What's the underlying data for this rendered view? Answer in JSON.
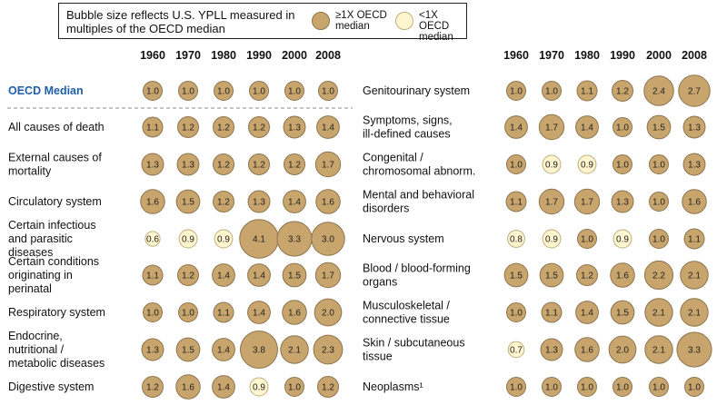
{
  "legend": {
    "title": "Bubble size reflects U.S. YPLL measured in multiples of the OECD median",
    "above_label": "≥1X OECD median",
    "below_label": "<1X OECD median"
  },
  "colors": {
    "above": "#c8a56c",
    "below": "#fff6cf",
    "median_label": "#1f5fa8",
    "stroke": "#8c7550"
  },
  "chart_data": {
    "type": "bubble-table",
    "years": [
      "1960",
      "1970",
      "1980",
      "1990",
      "2000",
      "2008"
    ],
    "left_panel": {
      "rows": [
        {
          "label": "OECD Median",
          "values": [
            1.0,
            1.0,
            1.0,
            1.0,
            1.0,
            1.0
          ]
        },
        {
          "label": "All causes of death",
          "values": [
            1.1,
            1.2,
            1.2,
            1.2,
            1.3,
            1.4
          ]
        },
        {
          "label": "External causes of mortality",
          "values": [
            1.3,
            1.3,
            1.2,
            1.2,
            1.2,
            1.7
          ]
        },
        {
          "label": "Circulatory system",
          "values": [
            1.6,
            1.5,
            1.2,
            1.3,
            1.4,
            1.6
          ]
        },
        {
          "label": "Certain infectious and parasitic diseases",
          "values": [
            0.6,
            0.9,
            0.9,
            4.1,
            3.3,
            3.0
          ]
        },
        {
          "label": "Certain conditions originating in perinatal",
          "values": [
            1.1,
            1.2,
            1.4,
            1.4,
            1.5,
            1.7
          ]
        },
        {
          "label": "Respiratory system",
          "values": [
            1.0,
            1.0,
            1.1,
            1.4,
            1.6,
            2.0
          ]
        },
        {
          "label": "Endocrine, nutritional / metabolic diseases",
          "values": [
            1.3,
            1.5,
            1.4,
            3.8,
            2.1,
            2.3
          ]
        },
        {
          "label": "Digestive system",
          "values": [
            1.2,
            1.6,
            1.4,
            0.9,
            1.0,
            1.2
          ]
        }
      ]
    },
    "right_panel": {
      "rows": [
        {
          "label": "Genitourinary system",
          "values": [
            1.0,
            1.0,
            1.1,
            1.2,
            2.4,
            2.7
          ]
        },
        {
          "label": "Symptoms, signs, ill-defined causes",
          "values": [
            1.4,
            1.7,
            1.4,
            1.0,
            1.5,
            1.3
          ]
        },
        {
          "label": "Congenital / chromosomal abnorm.",
          "values": [
            1.0,
            0.9,
            0.9,
            1.0,
            1.0,
            1.3
          ]
        },
        {
          "label": "Mental and behavioral disorders",
          "values": [
            1.1,
            1.7,
            1.7,
            1.3,
            1.0,
            1.6
          ]
        },
        {
          "label": "Nervous system",
          "values": [
            0.8,
            0.9,
            1.0,
            0.9,
            1.0,
            1.1
          ]
        },
        {
          "label": "Blood / blood-forming organs",
          "values": [
            1.5,
            1.5,
            1.2,
            1.6,
            2.2,
            2.1
          ]
        },
        {
          "label": "Musculoskeletal / connective tissue",
          "values": [
            1.0,
            1.1,
            1.4,
            1.5,
            2.1,
            2.1
          ]
        },
        {
          "label": "Skin / subcutaneous tissue",
          "values": [
            0.7,
            1.3,
            1.6,
            2.0,
            2.1,
            3.3
          ]
        },
        {
          "label": "Neoplasms¹",
          "values": [
            1.0,
            1.0,
            1.0,
            1.0,
            1.0,
            1.0
          ]
        }
      ]
    }
  }
}
